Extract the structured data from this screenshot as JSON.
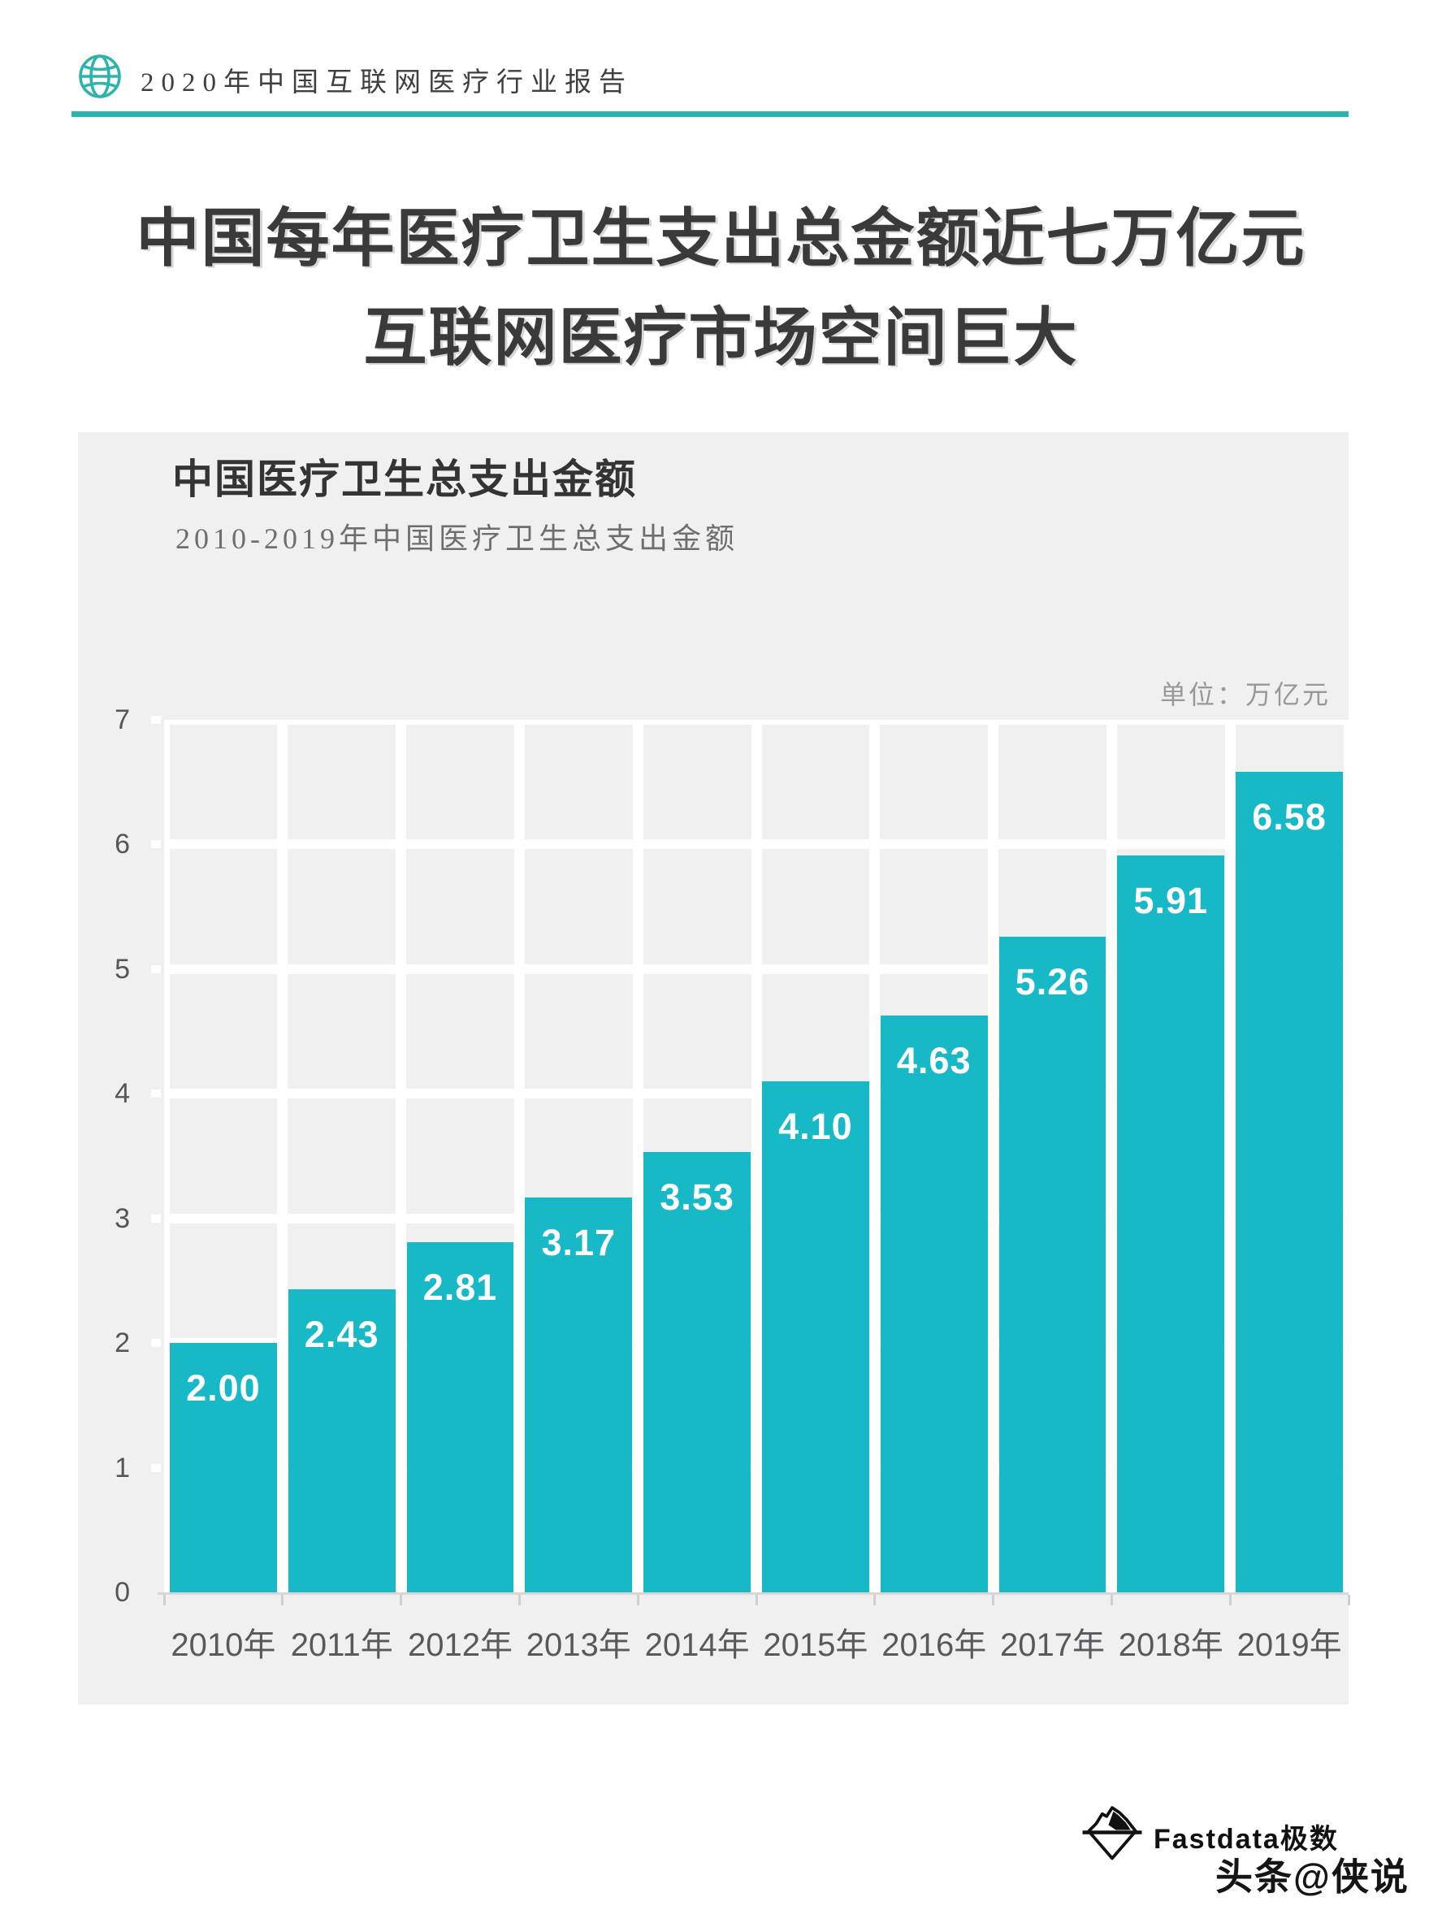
{
  "header": {
    "title": "2020年中国互联网医疗行业报告"
  },
  "main_title": {
    "line1": "中国每年医疗卫生支出总金额近七万亿元",
    "line2": "互联网医疗市场空间巨大"
  },
  "panel": {
    "title": "中国医疗卫生总支出金额",
    "subtitle": "2010-2019年中国医疗卫生总支出金额",
    "unit_label": "单位：万亿元"
  },
  "chart_data": {
    "type": "bar",
    "title": "中国医疗卫生总支出金额",
    "subtitle": "2010-2019年中国医疗卫生总支出金额",
    "unit": "万亿元",
    "categories": [
      "2010年",
      "2011年",
      "2012年",
      "2013年",
      "2014年",
      "2015年",
      "2016年",
      "2017年",
      "2018年",
      "2019年"
    ],
    "values": [
      2.0,
      2.43,
      2.81,
      3.17,
      3.53,
      4.1,
      4.63,
      5.26,
      5.91,
      6.58
    ],
    "value_labels": [
      "2.00",
      "2.43",
      "2.81",
      "3.17",
      "3.53",
      "4.10",
      "4.63",
      "5.26",
      "5.91",
      "6.58"
    ],
    "xlabel": "",
    "ylabel": "",
    "ylim": [
      0,
      7
    ],
    "y_ticks": [
      0,
      1,
      2,
      3,
      4,
      5,
      6,
      7
    ],
    "grid": true,
    "legend": false,
    "bar_color": "#17b9c6",
    "bar_label_color": "#ffffff"
  },
  "footer": {
    "brand": "Fastdata极数",
    "handle": "头条@侠说"
  },
  "colors": {
    "accent_teal": "#2db4ac",
    "bar_teal": "#17b9c6",
    "panel_bg": "#f0f0f1",
    "grid_line": "#ffffff",
    "axis_line": "#d8d8d8",
    "title_text": "#3a3a3a",
    "axis_text": "#58595b",
    "muted_text": "#989898"
  },
  "icons": {
    "globe": "globe-icon",
    "logo": "iceberg-logo"
  }
}
